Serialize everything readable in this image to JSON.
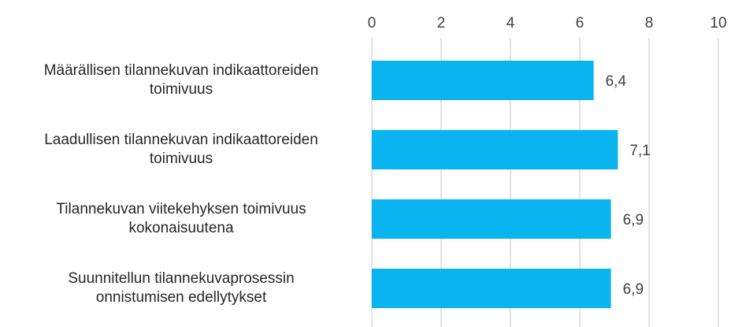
{
  "chart_data": {
    "type": "bar",
    "orientation": "horizontal",
    "categories": [
      "Määrällisen tilannekuvan indikaattoreiden\ntoimivuus",
      "Laadullisen tilannekuvan indikaattoreiden\ntoimivuus",
      "Tilannekuvan viitekehyksen toimivuus\nkokonaisuutena",
      "Suunnitellun tilannekuvaprosessin\nonnistumisen edellytykset"
    ],
    "values": [
      6.4,
      7.1,
      6.9,
      6.9
    ],
    "value_labels": [
      "6,4",
      "7,1",
      "6,9",
      "6,9"
    ],
    "color": "#0ab4ee",
    "xlim": [
      0,
      10
    ],
    "xticks": [
      0,
      2,
      4,
      6,
      8,
      10
    ],
    "grid": true
  }
}
